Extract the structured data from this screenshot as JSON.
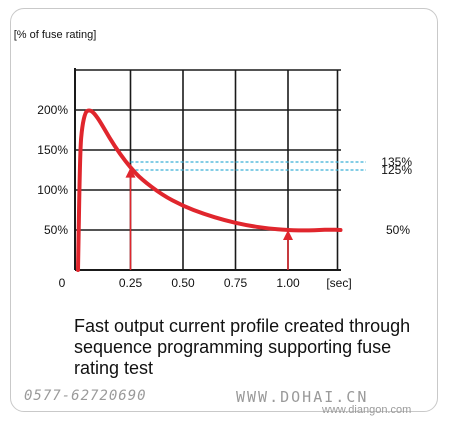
{
  "chart_data": {
    "type": "line",
    "ylabel": "[% of fuse rating]",
    "xlabel": "[sec]",
    "x_ticks": [
      {
        "value": 0,
        "label": "0"
      },
      {
        "value": 0.25,
        "label": "0.25"
      },
      {
        "value": 0.5,
        "label": "0.50"
      },
      {
        "value": 0.75,
        "label": "0.75"
      },
      {
        "value": 1.0,
        "label": "1.00"
      }
    ],
    "y_ticks": [
      {
        "value": 50,
        "label": "50%"
      },
      {
        "value": 100,
        "label": "100%"
      },
      {
        "value": 150,
        "label": "150%"
      },
      {
        "value": 200,
        "label": "200%"
      }
    ],
    "xlim": [
      0,
      1.25
    ],
    "ylim": [
      0,
      250
    ],
    "grid": true,
    "series": [
      {
        "color": "#e0262d",
        "x": [
          0,
          0.01,
          0.02,
          0.035,
          0.05,
          0.07,
          0.1,
          0.15,
          0.2,
          0.25,
          0.3,
          0.4,
          0.5,
          0.6,
          0.7,
          0.8,
          0.9,
          1.0,
          1.05,
          1.1,
          1.15,
          1.2,
          1.25
        ],
        "y": [
          0,
          150,
          180,
          197,
          200,
          198,
          188,
          165,
          145,
          128,
          114,
          94,
          80,
          70,
          62,
          56,
          52,
          50,
          49.5,
          49.5,
          50,
          50.5,
          50
        ]
      }
    ],
    "reference_lines": [
      {
        "y": 135,
        "label": "135%",
        "color": "#3bb0d6"
      },
      {
        "y": 125,
        "label": "125%",
        "color": "#3bb0d6"
      }
    ],
    "markers": [
      {
        "x": 0.25,
        "y": 128,
        "color": "#e0262d"
      },
      {
        "x": 1.0,
        "y": 50,
        "color": "#e0262d"
      }
    ],
    "annotations": [
      {
        "label": "50%",
        "y": 50
      }
    ]
  },
  "caption": "Fast output current profile created through sequence programming supporting fuse rating test",
  "watermark": {
    "phone": "0577-62720690",
    "site": "WWW.DOHAI.CN",
    "url": "www.diangon.com"
  }
}
